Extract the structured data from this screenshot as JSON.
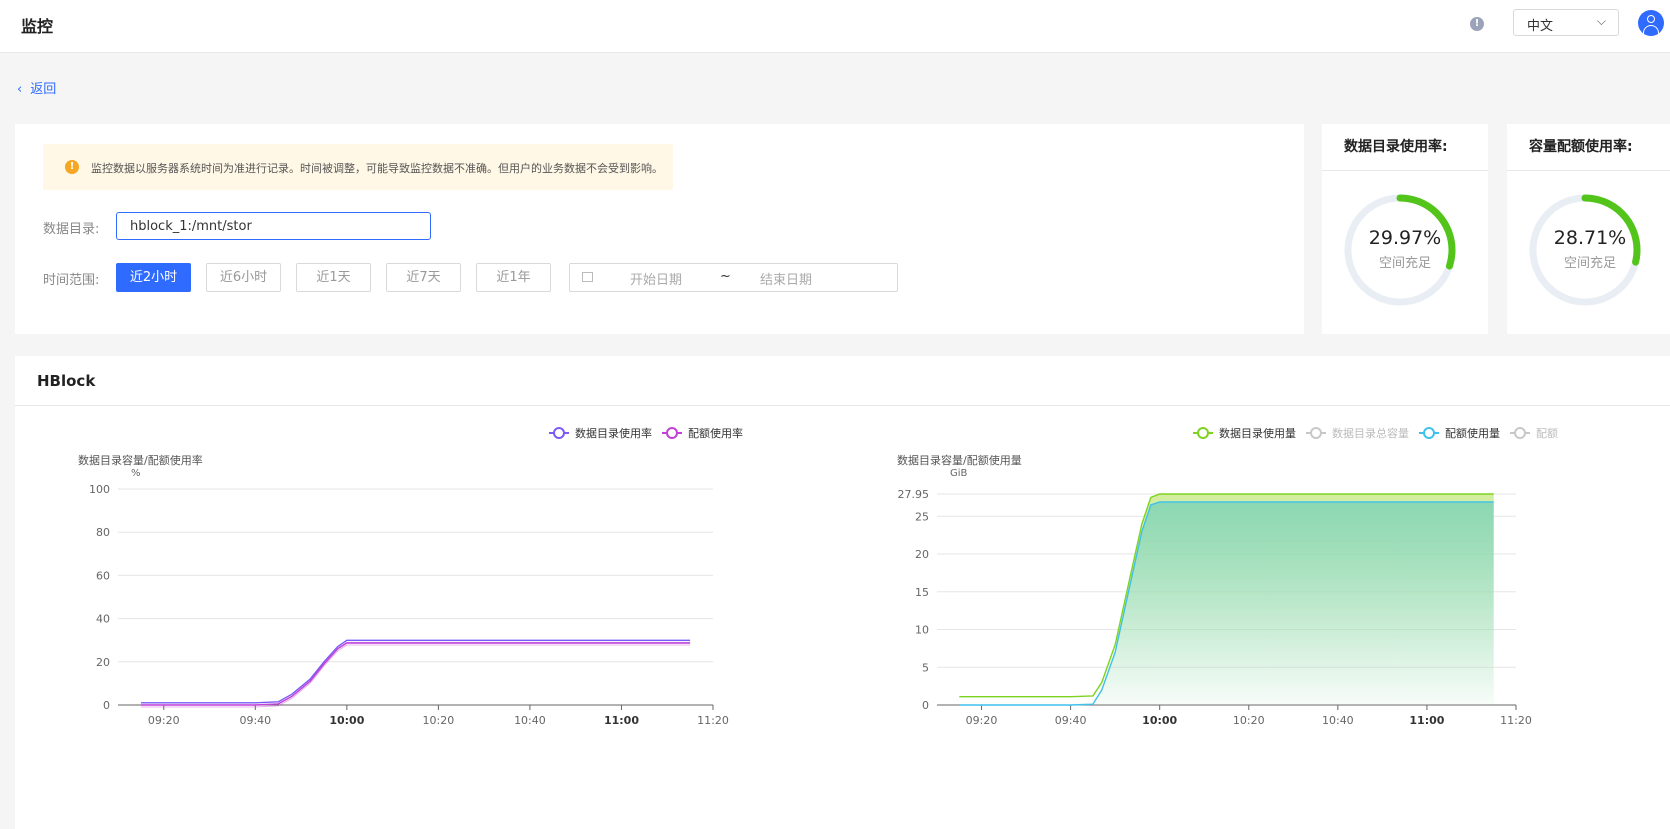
{
  "header": {
    "title": "监控",
    "help_icon": "!",
    "language": "中文",
    "chevron": "⌵"
  },
  "back": {
    "label": "返回",
    "chevron": "‹"
  },
  "filter": {
    "notice": "监控数据以服务器系统时间为准进行记录。时间被调整，可能导致监控数据不准确。但用户的业务数据不会受到影响。",
    "warn_icon": "!",
    "dir_label": "数据目录:",
    "dir_value": "hblock_1:/mnt/stor",
    "time_label": "时间范围:",
    "time_buttons": [
      "近2小时",
      "近6小时",
      "近1天",
      "近7天",
      "近1年"
    ],
    "active_button": "近2小时",
    "date_start_placeholder": "开始日期",
    "date_separator": "~",
    "date_end_placeholder": "结束日期"
  },
  "gauges": [
    {
      "title": "数据目录使用率:",
      "percent": 29.97,
      "percent_text": "29.97%",
      "caption": "空间充足",
      "color": "#52c41a"
    },
    {
      "title": "容量配额使用率:",
      "percent": 28.71,
      "percent_text": "28.71%",
      "caption": "空间充足",
      "color": "#52c41a"
    }
  ],
  "panel": {
    "title": "HBlock"
  },
  "chart_data": [
    {
      "type": "line",
      "title": "数据目录容量/配额使用率",
      "ylabel": "%",
      "ylim": [
        0,
        100
      ],
      "yticks": [
        "0",
        "20",
        "40",
        "60",
        "80",
        "100"
      ],
      "xlim_minutes": [
        9.17,
        11.33
      ],
      "xticks": [
        {
          "label": "09:20",
          "bold": false
        },
        {
          "label": "09:40",
          "bold": false
        },
        {
          "label": "10:00",
          "bold": true
        },
        {
          "label": "10:20",
          "bold": false
        },
        {
          "label": "10:40",
          "bold": false
        },
        {
          "label": "11:00",
          "bold": true
        },
        {
          "label": "11:20",
          "bold": false
        }
      ],
      "legend": [
        {
          "name": "数据目录使用率",
          "color": "#7b5af5",
          "active": true
        },
        {
          "name": "配额使用率",
          "color": "#c23fd8",
          "active": true
        }
      ],
      "legend_position": "top-right",
      "grid": true,
      "x": [
        "09:15",
        "09:20",
        "09:30",
        "09:40",
        "09:45",
        "09:48",
        "09:52",
        "09:55",
        "09:58",
        "10:00",
        "10:05",
        "10:20",
        "10:40",
        "11:00",
        "11:15"
      ],
      "series": [
        {
          "name": "数据目录使用率",
          "color": "#7b5af5",
          "values": [
            1,
            1,
            1,
            1,
            1.5,
            5,
            12,
            20,
            27,
            29.97,
            29.97,
            29.97,
            29.97,
            29.97,
            29.97
          ]
        },
        {
          "name": "配额使用率",
          "color": "#c23fd8",
          "values": [
            0,
            0,
            0,
            0,
            0.5,
            4,
            11,
            19,
            26,
            28.71,
            28.71,
            28.71,
            28.71,
            28.71,
            28.71
          ]
        }
      ]
    },
    {
      "type": "area",
      "title": "数据目录容量/配额使用量",
      "ylabel": "GiB",
      "ylim": [
        0,
        27.95
      ],
      "yticks": [
        "0",
        "5",
        "10",
        "15",
        "20",
        "25",
        "27.95"
      ],
      "xlim_minutes": [
        9.17,
        11.33
      ],
      "xticks": [
        {
          "label": "09:20",
          "bold": false
        },
        {
          "label": "09:40",
          "bold": false
        },
        {
          "label": "10:00",
          "bold": true
        },
        {
          "label": "10:20",
          "bold": false
        },
        {
          "label": "10:40",
          "bold": false
        },
        {
          "label": "11:00",
          "bold": true
        },
        {
          "label": "11:20",
          "bold": false
        }
      ],
      "legend": [
        {
          "name": "数据目录使用量",
          "color": "#7ed321",
          "active": true
        },
        {
          "name": "数据目录总容量",
          "color": "#c0c0c0",
          "active": false
        },
        {
          "name": "配额使用量",
          "color": "#3ec1ea",
          "active": true
        },
        {
          "name": "配额",
          "color": "#c0c0c0",
          "active": false
        }
      ],
      "legend_position": "top-right",
      "grid": true,
      "x": [
        "09:15",
        "09:20",
        "09:30",
        "09:40",
        "09:45",
        "09:47",
        "09:50",
        "09:53",
        "09:56",
        "09:58",
        "10:00",
        "10:05",
        "10:20",
        "10:40",
        "11:00",
        "11:15"
      ],
      "series": [
        {
          "name": "数据目录使用量",
          "color": "#7ed321",
          "values": [
            1.1,
            1.1,
            1.1,
            1.1,
            1.2,
            3,
            8,
            16,
            24,
            27.5,
            27.95,
            27.95,
            27.95,
            27.95,
            27.95,
            27.95
          ]
        },
        {
          "name": "配额使用量",
          "color": "#3ec1ea",
          "values": [
            0,
            0,
            0,
            0,
            0.1,
            2,
            7,
            15,
            23,
            26.5,
            26.9,
            26.9,
            26.9,
            26.9,
            26.9,
            26.9
          ]
        }
      ]
    }
  ]
}
